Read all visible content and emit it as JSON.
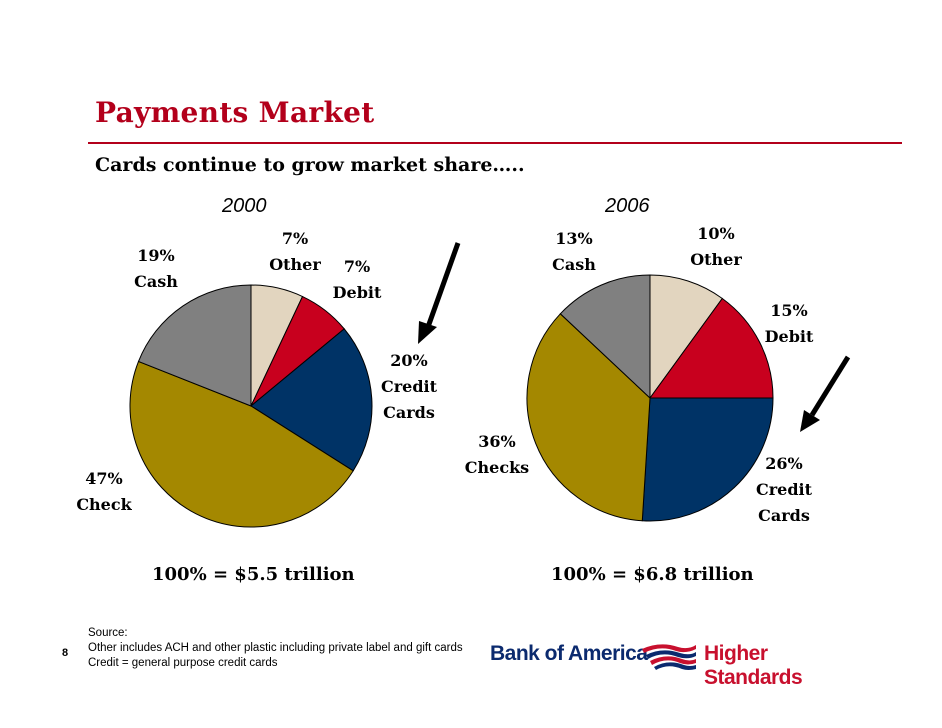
{
  "title": "Payments Market",
  "subtitle": "Cards continue to grow market share…..",
  "slide_number": "8",
  "footnotes": {
    "source": "Source:",
    "other_note": "Other includes ACH and other plastic including private label and gift cards",
    "credit_note": "Credit = general purpose credit cards"
  },
  "logo": {
    "brand": "Bank of America",
    "tagline": "Higher Standards"
  },
  "colors": {
    "other": "#e2d5bf",
    "debit": "#c8001e",
    "credit": "#003366",
    "check": "#a48800",
    "cash": "#808080",
    "title": "#b3001b"
  },
  "chart_data": [
    {
      "type": "pie",
      "title": "2000",
      "total_label": "100% = $5.5 trillion",
      "slices": [
        {
          "key": "other",
          "pct_label": "7%",
          "name": "Other",
          "value": 7
        },
        {
          "key": "debit",
          "pct_label": "7%",
          "name": "Debit",
          "value": 7
        },
        {
          "key": "credit",
          "pct_label": "20%",
          "name": "Credit Cards",
          "value": 20
        },
        {
          "key": "check",
          "pct_label": "47%",
          "name": "Check",
          "value": 47
        },
        {
          "key": "cash",
          "pct_label": "19%",
          "name": "Cash",
          "value": 19
        }
      ]
    },
    {
      "type": "pie",
      "title": "2006",
      "total_label": "100% = $6.8 trillion",
      "slices": [
        {
          "key": "other",
          "pct_label": "10%",
          "name": "Other",
          "value": 10
        },
        {
          "key": "debit",
          "pct_label": "15%",
          "name": "Debit",
          "value": 15
        },
        {
          "key": "credit",
          "pct_label": "26%",
          "name": "Credit Cards",
          "value": 26
        },
        {
          "key": "check",
          "pct_label": "36%",
          "name": "Checks",
          "value": 36
        },
        {
          "key": "cash",
          "pct_label": "13%",
          "name": "Cash",
          "value": 13
        }
      ]
    }
  ]
}
